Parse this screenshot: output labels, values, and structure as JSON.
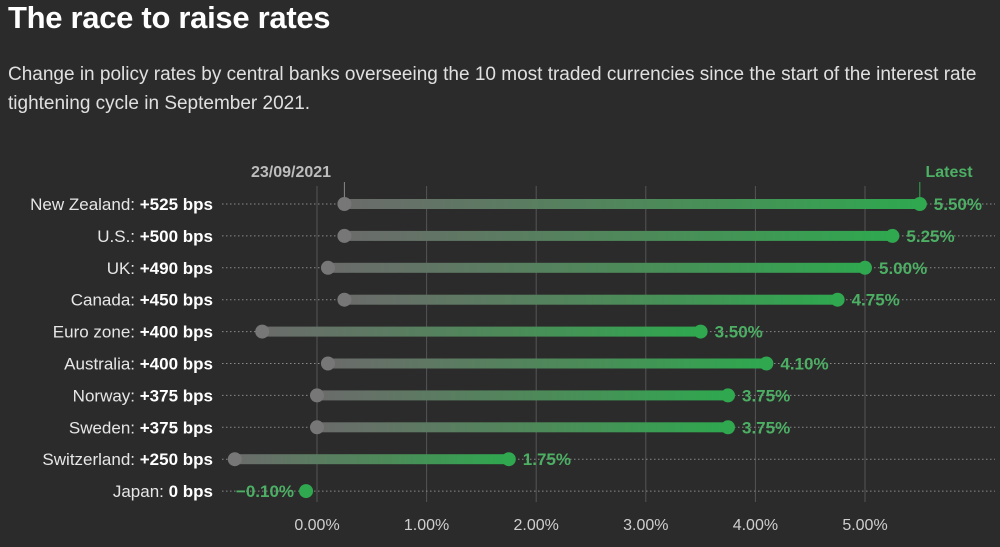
{
  "title": "The race to raise rates",
  "subtitle": "Change in policy rates by central banks overseeing the 10 most traded currencies since the start of the interest rate tightening cycle in September 2021.",
  "chart_data": {
    "type": "dumbbell",
    "start_label": "23/09/2021",
    "end_label": "Latest",
    "xlim": [
      -0.75,
      5.75
    ],
    "xticks": [
      0,
      1,
      2,
      3,
      4,
      5
    ],
    "xtick_labels": [
      "0.00%",
      "1.00%",
      "2.00%",
      "3.00%",
      "4.00%",
      "5.00%"
    ],
    "grid": "vertical",
    "colors": {
      "start": "#777777",
      "end": "#2fa84f",
      "end_text": "#4caf64",
      "grid": "#555555"
    },
    "rows": [
      {
        "country": "New Zealand:",
        "change": "+525 bps",
        "start": 0.25,
        "end": 5.5,
        "end_label": "5.50%"
      },
      {
        "country": "U.S.:",
        "change": "+500 bps",
        "start": 0.25,
        "end": 5.25,
        "end_label": "5.25%"
      },
      {
        "country": "UK:",
        "change": "+490 bps",
        "start": 0.1,
        "end": 5.0,
        "end_label": "5.00%"
      },
      {
        "country": "Canada:",
        "change": "+450 bps",
        "start": 0.25,
        "end": 4.75,
        "end_label": "4.75%"
      },
      {
        "country": "Euro zone:",
        "change": "+400 bps",
        "start": -0.5,
        "end": 3.5,
        "end_label": "3.50%"
      },
      {
        "country": "Australia:",
        "change": "+400 bps",
        "start": 0.1,
        "end": 4.1,
        "end_label": "4.10%"
      },
      {
        "country": "Norway:",
        "change": "+375 bps",
        "start": 0.0,
        "end": 3.75,
        "end_label": "3.75%"
      },
      {
        "country": "Sweden:",
        "change": "+375 bps",
        "start": 0.0,
        "end": 3.75,
        "end_label": "3.75%"
      },
      {
        "country": "Switzerland:",
        "change": "+250 bps",
        "start": -0.75,
        "end": 1.75,
        "end_label": "1.75%"
      },
      {
        "country": "Japan:",
        "change": "0 bps",
        "start": -0.1,
        "end": -0.1,
        "end_label": "−0.10%"
      }
    ]
  }
}
